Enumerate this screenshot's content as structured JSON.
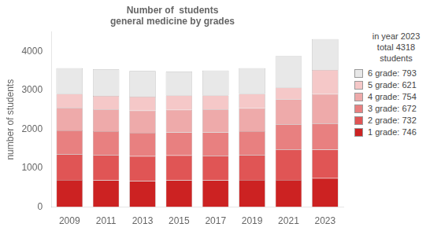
{
  "chart_data": {
    "type": "bar",
    "title": "Number of  students\ngeneral medicine by grades",
    "y_label": "number of students",
    "categories": [
      "2009",
      "2011",
      "2013",
      "2015",
      "2017",
      "2019",
      "2021",
      "2023"
    ],
    "series": [
      {
        "name": "1 grade: 746",
        "color": "#cc2222",
        "values": [
          700,
          690,
          670,
          690,
          690,
          700,
          700,
          746
        ]
      },
      {
        "name": "2 grade: 732",
        "color": "#e05555",
        "values": [
          660,
          650,
          640,
          640,
          630,
          640,
          780,
          732
        ]
      },
      {
        "name": "3 grade: 672",
        "color": "#e88080",
        "values": [
          610,
          610,
          600,
          590,
          600,
          610,
          650,
          672
        ]
      },
      {
        "name": "4 grade: 754",
        "color": "#eeaaaa",
        "values": [
          580,
          560,
          570,
          580,
          590,
          590,
          640,
          754
        ]
      },
      {
        "name": "5 grade: 621",
        "color": "#f5c8c8",
        "values": [
          360,
          350,
          360,
          370,
          360,
          370,
          300,
          621
        ]
      },
      {
        "name": "6 grade: 793",
        "color": "#e8e8e8",
        "values": [
          660,
          680,
          660,
          610,
          640,
          660,
          810,
          793
        ]
      }
    ],
    "legend_title": "in year 2023\ntotal 4318\nstudents",
    "legend": "right",
    "stacked": true,
    "grid": false,
    "ylim": [
      0,
      4500
    ],
    "yticks": [
      0,
      1000,
      2000,
      3000,
      4000
    ]
  }
}
